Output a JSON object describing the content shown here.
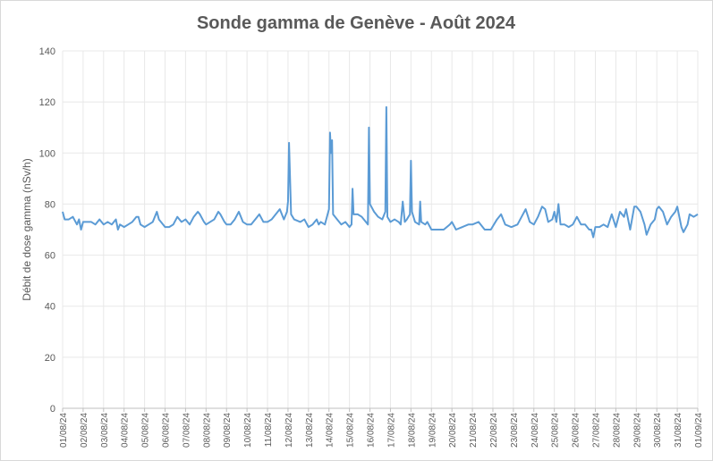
{
  "chart_data": {
    "type": "line",
    "title": "Sonde gamma de Genève - Août 2024",
    "y_label": "Débit de dose gamma (nSv/h)",
    "color": "#5b9bd5",
    "grid": true,
    "xlim": [
      0,
      31
    ],
    "ylim": [
      0,
      140
    ],
    "yticks": [
      0,
      20,
      40,
      60,
      80,
      100,
      120,
      140
    ],
    "xticks": [
      {
        "value": 0,
        "label": "01/08/24"
      },
      {
        "value": 1,
        "label": "02/08/24"
      },
      {
        "value": 2,
        "label": "03/08/24"
      },
      {
        "value": 3,
        "label": "04/08/24"
      },
      {
        "value": 4,
        "label": "05/08/24"
      },
      {
        "value": 5,
        "label": "06/08/24"
      },
      {
        "value": 6,
        "label": "07/08/24"
      },
      {
        "value": 7,
        "label": "08/08/24"
      },
      {
        "value": 8,
        "label": "09/08/24"
      },
      {
        "value": 9,
        "label": "10/08/24"
      },
      {
        "value": 10,
        "label": "11/08/24"
      },
      {
        "value": 11,
        "label": "12/08/24"
      },
      {
        "value": 12,
        "label": "13/08/24"
      },
      {
        "value": 13,
        "label": "14/08/24"
      },
      {
        "value": 14,
        "label": "15/08/24"
      },
      {
        "value": 15,
        "label": "16/08/24"
      },
      {
        "value": 16,
        "label": "17/08/24"
      },
      {
        "value": 17,
        "label": "18/08/24"
      },
      {
        "value": 18,
        "label": "19/08/24"
      },
      {
        "value": 19,
        "label": "20/08/24"
      },
      {
        "value": 20,
        "label": "21/08/24"
      },
      {
        "value": 21,
        "label": "22/08/24"
      },
      {
        "value": 22,
        "label": "23/08/24"
      },
      {
        "value": 23,
        "label": "24/08/24"
      },
      {
        "value": 24,
        "label": "25/08/24"
      },
      {
        "value": 25,
        "label": "26/08/24"
      },
      {
        "value": 26,
        "label": "27/08/24"
      },
      {
        "value": 27,
        "label": "28/08/24"
      },
      {
        "value": 28,
        "label": "29/08/24"
      },
      {
        "value": 29,
        "label": "30/08/24"
      },
      {
        "value": 30,
        "label": "31/08/24"
      },
      {
        "value": 31,
        "label": "01/09/24"
      }
    ],
    "x": [
      0,
      0.1,
      0.3,
      0.5,
      0.7,
      0.8,
      0.9,
      1.0,
      1.2,
      1.4,
      1.6,
      1.8,
      2.0,
      2.2,
      2.4,
      2.6,
      2.7,
      2.8,
      3.0,
      3.2,
      3.4,
      3.6,
      3.7,
      3.8,
      4.0,
      4.2,
      4.4,
      4.6,
      4.7,
      4.9,
      5.0,
      5.2,
      5.4,
      5.6,
      5.8,
      6.0,
      6.2,
      6.4,
      6.6,
      6.7,
      6.9,
      7.0,
      7.2,
      7.4,
      7.6,
      7.7,
      7.9,
      8.0,
      8.2,
      8.4,
      8.6,
      8.8,
      9.0,
      9.2,
      9.4,
      9.6,
      9.8,
      10.0,
      10.2,
      10.4,
      10.6,
      10.8,
      10.95,
      11.0,
      11.05,
      11.1,
      11.15,
      11.3,
      11.6,
      11.8,
      12.0,
      12.2,
      12.4,
      12.5,
      12.6,
      12.8,
      12.9,
      13.0,
      13.05,
      13.1,
      13.15,
      13.2,
      13.4,
      13.6,
      13.8,
      14.0,
      14.1,
      14.15,
      14.2,
      14.4,
      14.6,
      14.8,
      14.9,
      14.95,
      15.0,
      15.2,
      15.4,
      15.6,
      15.75,
      15.8,
      15.85,
      16.0,
      16.2,
      16.4,
      16.5,
      16.6,
      16.7,
      16.8,
      16.95,
      17.0,
      17.05,
      17.2,
      17.4,
      17.45,
      17.5,
      17.7,
      17.8,
      18.0,
      18.3,
      18.6,
      18.9,
      19.0,
      19.2,
      19.5,
      19.8,
      20.0,
      20.3,
      20.6,
      20.9,
      21.2,
      21.4,
      21.6,
      21.9,
      22.2,
      22.4,
      22.6,
      22.8,
      23.0,
      23.2,
      23.4,
      23.55,
      23.7,
      23.9,
      24.0,
      24.1,
      24.2,
      24.3,
      24.5,
      24.7,
      24.9,
      25.1,
      25.3,
      25.5,
      25.7,
      25.8,
      25.9,
      26.0,
      26.2,
      26.4,
      26.6,
      26.8,
      27.0,
      27.2,
      27.4,
      27.5,
      27.7,
      27.9,
      28.0,
      28.2,
      28.4,
      28.5,
      28.7,
      28.9,
      29.0,
      29.1,
      29.3,
      29.5,
      29.7,
      29.9,
      30.0,
      30.2,
      30.3,
      30.5,
      30.6,
      30.8,
      31.0
    ],
    "values": [
      77,
      74,
      74,
      75,
      72,
      74,
      70,
      73,
      73,
      73,
      72,
      74,
      72,
      73,
      72,
      74,
      70,
      72,
      71,
      72,
      73,
      75,
      75,
      72,
      71,
      72,
      73,
      77,
      74,
      72,
      71,
      71,
      72,
      75,
      73,
      74,
      72,
      75,
      77,
      76,
      73,
      72,
      73,
      74,
      77,
      76,
      73,
      72,
      72,
      74,
      77,
      73,
      72,
      72,
      74,
      76,
      73,
      73,
      74,
      76,
      78,
      74,
      77,
      81,
      104,
      90,
      76,
      74,
      73,
      74,
      71,
      72,
      74,
      72,
      73,
      72,
      75,
      78,
      108,
      100,
      105,
      76,
      74,
      72,
      73,
      71,
      72,
      86,
      76,
      76,
      75,
      73,
      72,
      110,
      80,
      77,
      75,
      74,
      77,
      118,
      75,
      73,
      74,
      73,
      72,
      81,
      73,
      74,
      76,
      97,
      77,
      73,
      72,
      81,
      73,
      72,
      73,
      70,
      70,
      70,
      72,
      73,
      70,
      71,
      72,
      72,
      73,
      70,
      70,
      74,
      76,
      72,
      71,
      72,
      75,
      78,
      73,
      72,
      75,
      79,
      78,
      73,
      74,
      77,
      73,
      80,
      72,
      72,
      71,
      72,
      75,
      72,
      72,
      70,
      70,
      67,
      71,
      71,
      72,
      71,
      76,
      71,
      77,
      75,
      78,
      70,
      79,
      79,
      77,
      72,
      68,
      72,
      74,
      78,
      79,
      77,
      72,
      75,
      77,
      79,
      71,
      69,
      72,
      76,
      75,
      76
    ]
  }
}
